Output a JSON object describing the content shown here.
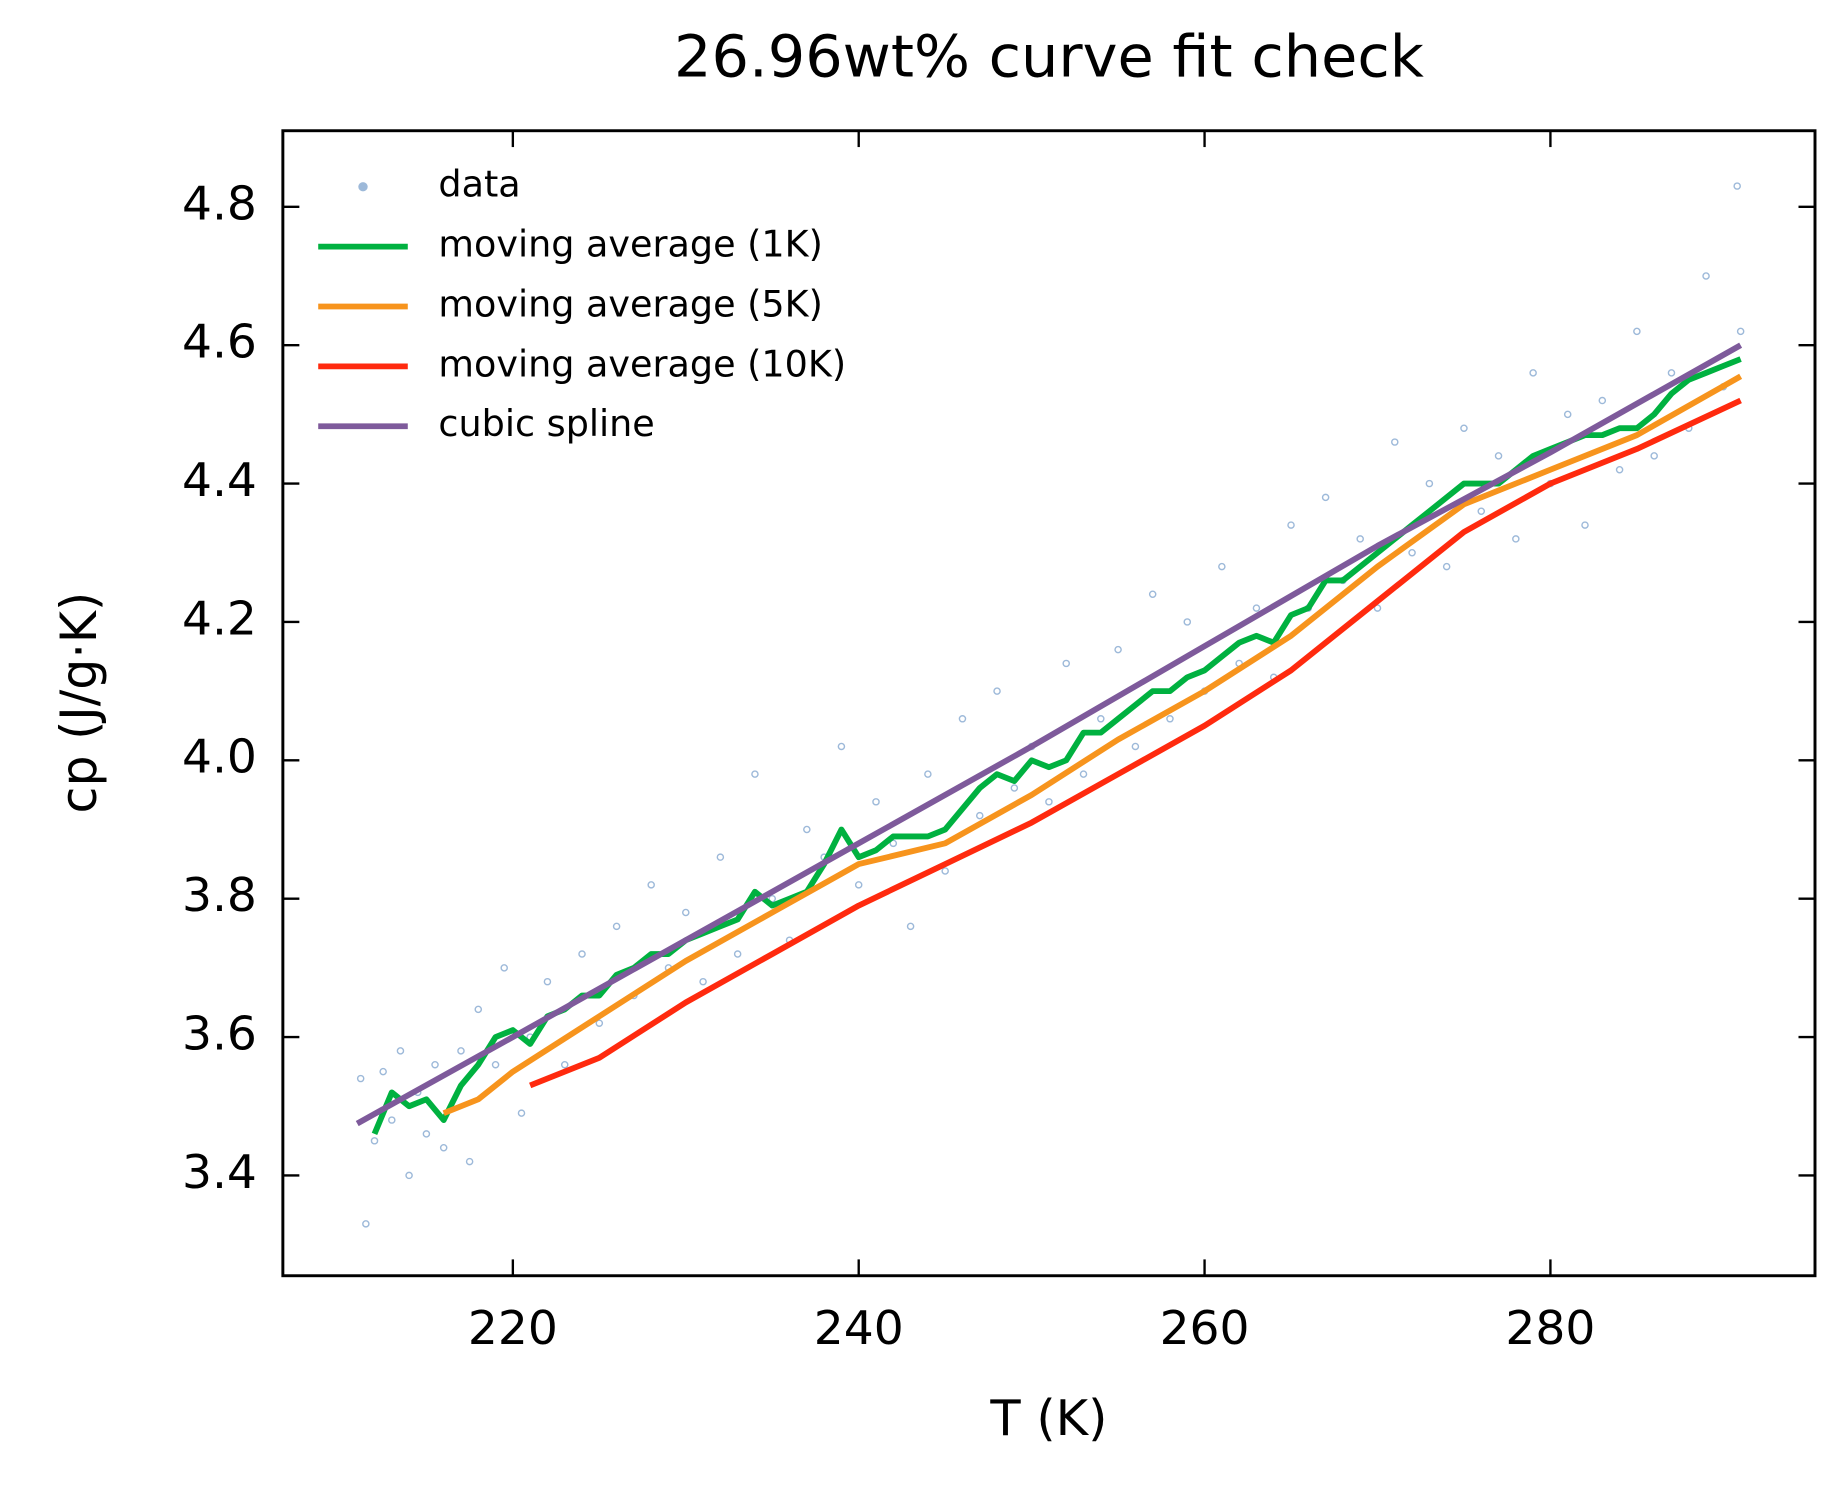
{
  "chart_data": {
    "type": "line",
    "title": "26.96wt% curve fit check",
    "x_label": "T (K)",
    "y_label": "cp (J/g·K)",
    "xlim": [
      206.7,
      295.3
    ],
    "ylim": [
      3.255,
      4.91
    ],
    "xticks": [
      220,
      240,
      260,
      280
    ],
    "yticks": [
      3.4,
      3.6,
      3.8,
      {
        "value": 4,
        "label": "4.0"
      },
      4.2,
      4.4,
      4.6,
      4.8
    ],
    "legend": "upper left",
    "series": [
      {
        "name": "data",
        "kind": "scatter",
        "color": "#5b8bc0",
        "x": [
          211.2,
          211.5,
          212,
          212.5,
          213,
          213.5,
          214,
          214.5,
          215,
          215.5,
          216,
          217,
          217.5,
          218,
          219,
          219.5,
          220.5,
          221,
          222,
          223,
          224,
          225,
          226,
          227,
          228,
          229,
          230,
          231,
          232,
          233,
          234,
          235,
          236,
          237,
          238,
          239,
          240,
          241,
          242,
          243,
          244,
          245,
          246,
          247,
          248,
          249,
          250,
          251,
          252,
          253,
          254,
          255,
          256,
          257,
          258,
          259,
          260,
          261,
          262,
          263,
          264,
          265,
          266,
          267,
          268,
          269,
          270,
          271,
          272,
          273,
          274,
          275,
          276,
          277,
          278,
          279,
          280,
          281,
          282,
          283,
          284,
          285,
          286,
          287,
          288,
          289,
          290,
          290.8,
          291
        ],
        "values": [
          3.54,
          3.33,
          3.45,
          3.55,
          3.48,
          3.58,
          3.4,
          3.52,
          3.46,
          3.56,
          3.44,
          3.58,
          3.42,
          3.64,
          3.56,
          3.7,
          3.49,
          3.6,
          3.68,
          3.56,
          3.72,
          3.62,
          3.76,
          3.66,
          3.82,
          3.7,
          3.78,
          3.68,
          3.86,
          3.72,
          3.98,
          3.8,
          3.74,
          3.9,
          3.86,
          4.02,
          3.82,
          3.94,
          3.88,
          3.76,
          3.98,
          3.84,
          4.06,
          3.92,
          4.1,
          3.96,
          4.02,
          3.94,
          4.14,
          3.98,
          4.06,
          4.16,
          4.02,
          4.24,
          4.06,
          4.2,
          4.1,
          4.28,
          4.14,
          4.22,
          4.12,
          4.34,
          4.22,
          4.38,
          4.26,
          4.32,
          4.22,
          4.46,
          4.3,
          4.4,
          4.28,
          4.48,
          4.36,
          4.44,
          4.32,
          4.56,
          4.4,
          4.5,
          4.34,
          4.52,
          4.42,
          4.62,
          4.44,
          4.56,
          4.48,
          4.7,
          4.54,
          4.83,
          4.62
        ]
      },
      {
        "name": "moving average (1K)",
        "kind": "line",
        "color": "#00b140",
        "x": [
          212,
          213,
          214,
          215,
          216,
          217,
          218,
          219,
          220,
          221,
          222,
          223,
          224,
          225,
          226,
          227,
          228,
          229,
          230,
          231,
          232,
          233,
          234,
          235,
          236,
          237,
          238,
          239,
          240,
          241,
          242,
          243,
          244,
          245,
          246,
          247,
          248,
          249,
          250,
          251,
          252,
          253,
          254,
          255,
          256,
          257,
          258,
          259,
          260,
          261,
          262,
          263,
          264,
          265,
          266,
          267,
          268,
          269,
          270,
          271,
          272,
          273,
          274,
          275,
          276,
          277,
          278,
          279,
          280,
          281,
          282,
          283,
          284,
          285,
          286,
          287,
          288,
          289,
          290,
          291
        ],
        "values": [
          3.46,
          3.52,
          3.5,
          3.51,
          3.48,
          3.53,
          3.56,
          3.6,
          3.61,
          3.59,
          3.63,
          3.64,
          3.66,
          3.66,
          3.69,
          3.7,
          3.72,
          3.72,
          3.74,
          3.75,
          3.76,
          3.77,
          3.81,
          3.79,
          3.8,
          3.81,
          3.85,
          3.9,
          3.86,
          3.87,
          3.89,
          3.89,
          3.89,
          3.9,
          3.93,
          3.96,
          3.98,
          3.97,
          4.0,
          3.99,
          4.0,
          4.04,
          4.04,
          4.06,
          4.08,
          4.1,
          4.1,
          4.12,
          4.13,
          4.15,
          4.17,
          4.18,
          4.17,
          4.21,
          4.22,
          4.26,
          4.26,
          4.28,
          4.3,
          4.32,
          4.34,
          4.36,
          4.38,
          4.4,
          4.4,
          4.4,
          4.42,
          4.44,
          4.45,
          4.46,
          4.47,
          4.47,
          4.48,
          4.48,
          4.5,
          4.53,
          4.55,
          4.56,
          4.57,
          4.58
        ]
      },
      {
        "name": "moving average (5K)",
        "kind": "line",
        "color": "#f7941d",
        "x": [
          216,
          218,
          220,
          225,
          230,
          235,
          240,
          245,
          250,
          255,
          260,
          265,
          270,
          275,
          280,
          285,
          291
        ],
        "values": [
          3.49,
          3.51,
          3.55,
          3.63,
          3.71,
          3.78,
          3.85,
          3.88,
          3.95,
          4.03,
          4.1,
          4.18,
          4.28,
          4.37,
          4.42,
          4.47,
          4.555
        ]
      },
      {
        "name": "moving average (10K)",
        "kind": "line",
        "color": "#ff2a0e",
        "x": [
          221,
          225,
          230,
          235,
          240,
          245,
          250,
          255,
          260,
          265,
          270,
          275,
          280,
          285,
          291
        ],
        "values": [
          3.53,
          3.57,
          3.65,
          3.72,
          3.79,
          3.85,
          3.91,
          3.98,
          4.05,
          4.13,
          4.23,
          4.33,
          4.4,
          4.45,
          4.52
        ]
      },
      {
        "name": "cubic spline",
        "kind": "line",
        "color": "#7e5a9b",
        "x": [
          211,
          220,
          230,
          240,
          250,
          260,
          270,
          280,
          291
        ],
        "values": [
          3.475,
          3.6,
          3.74,
          3.88,
          4.02,
          4.165,
          4.31,
          4.445,
          4.6
        ]
      }
    ]
  }
}
